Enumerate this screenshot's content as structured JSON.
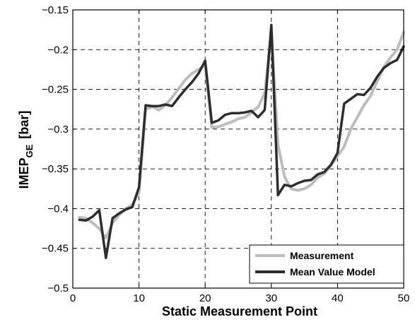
{
  "chart_data": {
    "type": "line",
    "xlabel": "Static Measurement Point",
    "ylabel_main": "IMEP",
    "ylabel_sub": "GE",
    "ylabel_unit": "[bar]",
    "xlim": [
      0,
      50
    ],
    "ylim": [
      -0.5,
      -0.15
    ],
    "xticks": [
      0,
      10,
      20,
      30,
      40,
      50
    ],
    "yticks": [
      -0.5,
      -0.45,
      -0.4,
      -0.35,
      -0.3,
      -0.25,
      -0.2,
      -0.15
    ],
    "grid": true,
    "legend_position": "bottom-right",
    "series": [
      {
        "name": "Measurement",
        "color": "#bdbdbd",
        "points": [
          [
            1,
            -0.411
          ],
          [
            2,
            -0.412
          ],
          [
            3,
            -0.418
          ],
          [
            4,
            -0.425
          ],
          [
            5,
            -0.437
          ],
          [
            6,
            -0.418
          ],
          [
            7,
            -0.408
          ],
          [
            8,
            -0.4
          ],
          [
            9,
            -0.395
          ],
          [
            10,
            -0.38
          ],
          [
            11,
            -0.275
          ],
          [
            12,
            -0.272
          ],
          [
            13,
            -0.276
          ],
          [
            14,
            -0.27
          ],
          [
            15,
            -0.26
          ],
          [
            16,
            -0.249
          ],
          [
            17,
            -0.238
          ],
          [
            18,
            -0.23
          ],
          [
            19,
            -0.225
          ],
          [
            20,
            -0.219
          ],
          [
            21,
            -0.298
          ],
          [
            22,
            -0.297
          ],
          [
            23,
            -0.294
          ],
          [
            24,
            -0.291
          ],
          [
            25,
            -0.287
          ],
          [
            26,
            -0.285
          ],
          [
            27,
            -0.279
          ],
          [
            28,
            -0.272
          ],
          [
            29,
            -0.255
          ],
          [
            30,
            -0.178
          ],
          [
            31,
            -0.32
          ],
          [
            32,
            -0.36
          ],
          [
            33,
            -0.375
          ],
          [
            34,
            -0.377
          ],
          [
            35,
            -0.375
          ],
          [
            36,
            -0.37
          ],
          [
            37,
            -0.361
          ],
          [
            38,
            -0.356
          ],
          [
            39,
            -0.346
          ],
          [
            40,
            -0.334
          ],
          [
            41,
            -0.322
          ],
          [
            42,
            -0.3
          ],
          [
            43,
            -0.285
          ],
          [
            44,
            -0.27
          ],
          [
            45,
            -0.258
          ],
          [
            46,
            -0.24
          ],
          [
            47,
            -0.222
          ],
          [
            48,
            -0.21
          ],
          [
            49,
            -0.2
          ],
          [
            50,
            -0.178
          ]
        ]
      },
      {
        "name": "Mean Value Model",
        "color": "#2d2d2d",
        "points": [
          [
            1,
            -0.414
          ],
          [
            2,
            -0.415
          ],
          [
            3,
            -0.41
          ],
          [
            4,
            -0.402
          ],
          [
            5,
            -0.462
          ],
          [
            6,
            -0.412
          ],
          [
            7,
            -0.406
          ],
          [
            8,
            -0.401
          ],
          [
            9,
            -0.398
          ],
          [
            10,
            -0.373
          ],
          [
            11,
            -0.27
          ],
          [
            12,
            -0.271
          ],
          [
            13,
            -0.271
          ],
          [
            14,
            -0.269
          ],
          [
            15,
            -0.271
          ],
          [
            16,
            -0.26
          ],
          [
            17,
            -0.25
          ],
          [
            18,
            -0.241
          ],
          [
            19,
            -0.23
          ],
          [
            20,
            -0.214
          ],
          [
            21,
            -0.292
          ],
          [
            22,
            -0.289
          ],
          [
            23,
            -0.282
          ],
          [
            24,
            -0.28
          ],
          [
            25,
            -0.28
          ],
          [
            26,
            -0.279
          ],
          [
            27,
            -0.277
          ],
          [
            28,
            -0.285
          ],
          [
            29,
            -0.276
          ],
          [
            30,
            -0.169
          ],
          [
            31,
            -0.383
          ],
          [
            32,
            -0.37
          ],
          [
            33,
            -0.372
          ],
          [
            34,
            -0.368
          ],
          [
            35,
            -0.365
          ],
          [
            36,
            -0.364
          ],
          [
            37,
            -0.357
          ],
          [
            38,
            -0.354
          ],
          [
            39,
            -0.345
          ],
          [
            40,
            -0.33
          ],
          [
            41,
            -0.268
          ],
          [
            42,
            -0.262
          ],
          [
            43,
            -0.256
          ],
          [
            44,
            -0.257
          ],
          [
            45,
            -0.248
          ],
          [
            46,
            -0.234
          ],
          [
            47,
            -0.223
          ],
          [
            48,
            -0.217
          ],
          [
            49,
            -0.213
          ],
          [
            50,
            -0.196
          ]
        ]
      }
    ]
  }
}
